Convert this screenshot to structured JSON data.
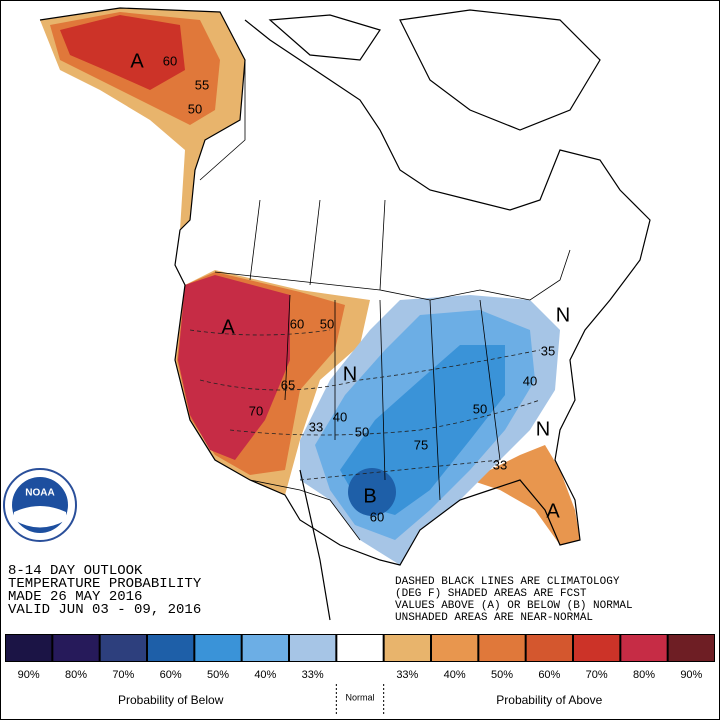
{
  "title_block": {
    "lines": [
      "8-14 DAY OUTLOOK",
      "TEMPERATURE PROBABILITY",
      "MADE  26 MAY 2016",
      "VALID  JUN 03 - 09, 2016"
    ]
  },
  "note": {
    "lines": [
      "DASHED BLACK LINES ARE CLIMATOLOGY",
      "(DEG F) SHADED AREAS ARE FCST",
      "VALUES ABOVE (A) OR BELOW (B) NORMAL",
      "UNSHADED AREAS ARE NEAR-NORMAL"
    ]
  },
  "logo": "NOAA",
  "map_labels": [
    "A",
    "60",
    "55",
    "50",
    "A",
    "60",
    "50",
    "65",
    "70",
    "N",
    "40",
    "33",
    "50",
    "75",
    "50",
    "40",
    "35",
    "N",
    "N",
    "33",
    "A",
    "B",
    "60"
  ],
  "legend": {
    "below_title": "Probability of Below",
    "normal_title": "Normal",
    "above_title": "Probability of Above",
    "below": [
      {
        "label": "90%",
        "color": "#1b1445"
      },
      {
        "label": "80%",
        "color": "#261a5a"
      },
      {
        "label": "70%",
        "color": "#2d3f7d"
      },
      {
        "label": "60%",
        "color": "#1e5fa8"
      },
      {
        "label": "50%",
        "color": "#3a93d8"
      },
      {
        "label": "40%",
        "color": "#6caee5"
      },
      {
        "label": "33%",
        "color": "#a6c5e6"
      }
    ],
    "normal_color": "#ffffff",
    "above": [
      {
        "label": "33%",
        "color": "#e8b46c"
      },
      {
        "label": "40%",
        "color": "#e8964e"
      },
      {
        "label": "50%",
        "color": "#e0783a"
      },
      {
        "label": "60%",
        "color": "#d4572e"
      },
      {
        "label": "70%",
        "color": "#cc3328"
      },
      {
        "label": "80%",
        "color": "#c62c45"
      },
      {
        "label": "90%",
        "color": "#6e1e24"
      }
    ]
  }
}
